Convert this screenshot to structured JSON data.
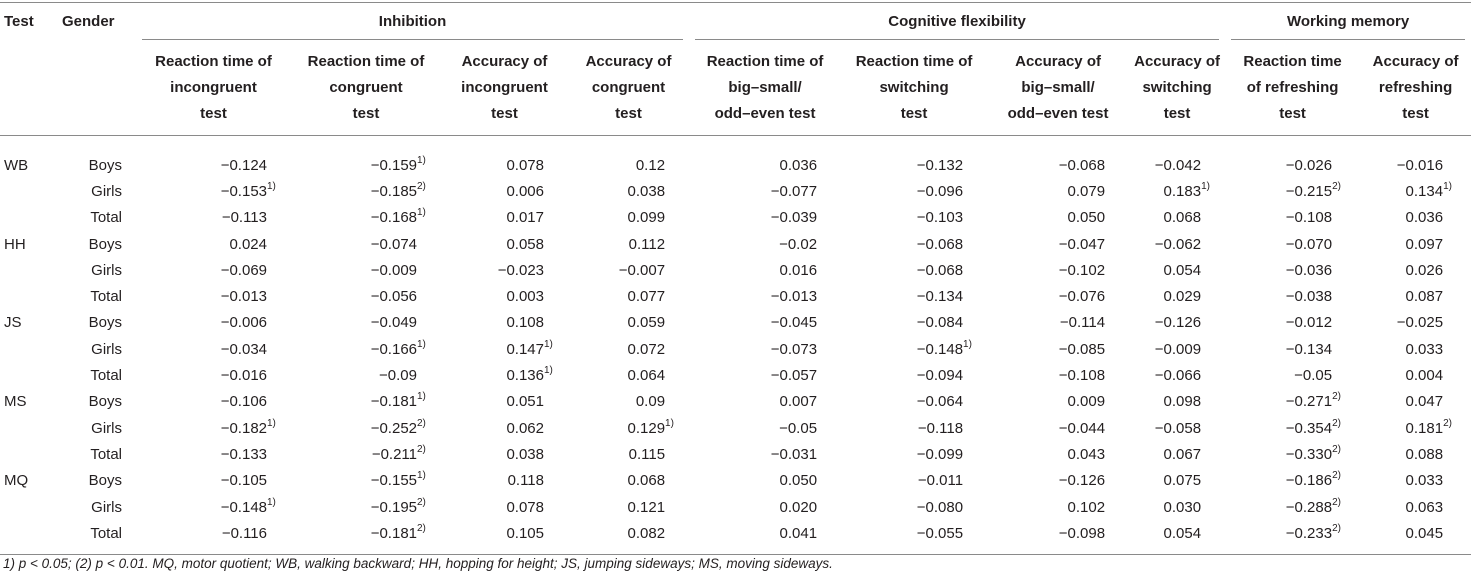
{
  "header": {
    "test": "Test",
    "gender": "Gender",
    "groups": {
      "inhibition": "Inhibition",
      "cognitive_flexibility": "Cognitive flexibility",
      "working_memory": "Working memory"
    },
    "columns": [
      [
        "Reaction time of",
        "incongruent",
        "test"
      ],
      [
        "Reaction time of",
        "congruent",
        "test"
      ],
      [
        "Accuracy of",
        "incongruent",
        "test"
      ],
      [
        "Accuracy of",
        "congruent",
        "test"
      ],
      [
        "Reaction time of",
        "big–small/",
        "odd–even test"
      ],
      [
        "Reaction time of",
        "switching",
        "test"
      ],
      [
        "Accuracy of",
        "big–small/",
        "odd–even test"
      ],
      [
        "Accuracy of",
        "switching",
        "test"
      ],
      [
        "Reaction time",
        "of refreshing",
        "test"
      ],
      [
        "Accuracy of",
        "refreshing",
        "test"
      ]
    ]
  },
  "rows": [
    {
      "test": "WB",
      "gender": "Boys",
      "values": [
        [
          "−0.124",
          ""
        ],
        [
          "−0.159",
          "1)"
        ],
        [
          "0.078",
          ""
        ],
        [
          "0.12",
          ""
        ],
        [
          "0.036",
          ""
        ],
        [
          "−0.132",
          ""
        ],
        [
          "−0.068",
          ""
        ],
        [
          "−0.042",
          ""
        ],
        [
          "−0.026",
          ""
        ],
        [
          "−0.016",
          ""
        ]
      ]
    },
    {
      "test": "",
      "gender": "Girls",
      "values": [
        [
          "−0.153",
          "1)"
        ],
        [
          "−0.185",
          "2)"
        ],
        [
          "0.006",
          ""
        ],
        [
          "0.038",
          ""
        ],
        [
          "−0.077",
          ""
        ],
        [
          "−0.096",
          ""
        ],
        [
          "0.079",
          ""
        ],
        [
          "0.183",
          "1)"
        ],
        [
          "−0.215",
          "2)"
        ],
        [
          "0.134",
          "1)"
        ]
      ]
    },
    {
      "test": "",
      "gender": "Total",
      "values": [
        [
          "−0.113",
          ""
        ],
        [
          "−0.168",
          "1)"
        ],
        [
          "0.017",
          ""
        ],
        [
          "0.099",
          ""
        ],
        [
          "−0.039",
          ""
        ],
        [
          "−0.103",
          ""
        ],
        [
          "0.050",
          ""
        ],
        [
          "0.068",
          ""
        ],
        [
          "−0.108",
          ""
        ],
        [
          "0.036",
          ""
        ]
      ]
    },
    {
      "test": "HH",
      "gender": "Boys",
      "values": [
        [
          "0.024",
          ""
        ],
        [
          "−0.074",
          ""
        ],
        [
          "0.058",
          ""
        ],
        [
          "0.112",
          ""
        ],
        [
          "−0.02",
          ""
        ],
        [
          "−0.068",
          ""
        ],
        [
          "−0.047",
          ""
        ],
        [
          "−0.062",
          ""
        ],
        [
          "−0.070",
          ""
        ],
        [
          "0.097",
          ""
        ]
      ]
    },
    {
      "test": "",
      "gender": "Girls",
      "values": [
        [
          "−0.069",
          ""
        ],
        [
          "−0.009",
          ""
        ],
        [
          "−0.023",
          ""
        ],
        [
          "−0.007",
          ""
        ],
        [
          "0.016",
          ""
        ],
        [
          "−0.068",
          ""
        ],
        [
          "−0.102",
          ""
        ],
        [
          "0.054",
          ""
        ],
        [
          "−0.036",
          ""
        ],
        [
          "0.026",
          ""
        ]
      ]
    },
    {
      "test": "",
      "gender": "Total",
      "values": [
        [
          "−0.013",
          ""
        ],
        [
          "−0.056",
          ""
        ],
        [
          "0.003",
          ""
        ],
        [
          "0.077",
          ""
        ],
        [
          "−0.013",
          ""
        ],
        [
          "−0.134",
          ""
        ],
        [
          "−0.076",
          ""
        ],
        [
          "0.029",
          ""
        ],
        [
          "−0.038",
          ""
        ],
        [
          "0.087",
          ""
        ]
      ]
    },
    {
      "test": "JS",
      "gender": "Boys",
      "values": [
        [
          "−0.006",
          ""
        ],
        [
          "−0.049",
          ""
        ],
        [
          "0.108",
          ""
        ],
        [
          "0.059",
          ""
        ],
        [
          "−0.045",
          ""
        ],
        [
          "−0.084",
          ""
        ],
        [
          "−0.114",
          ""
        ],
        [
          "−0.126",
          ""
        ],
        [
          "−0.012",
          ""
        ],
        [
          "−0.025",
          ""
        ]
      ]
    },
    {
      "test": "",
      "gender": "Girls",
      "values": [
        [
          "−0.034",
          ""
        ],
        [
          "−0.166",
          "1)"
        ],
        [
          "0.147",
          "1)"
        ],
        [
          "0.072",
          ""
        ],
        [
          "−0.073",
          ""
        ],
        [
          "−0.148",
          "1)"
        ],
        [
          "−0.085",
          ""
        ],
        [
          "−0.009",
          ""
        ],
        [
          "−0.134",
          ""
        ],
        [
          "0.033",
          ""
        ]
      ]
    },
    {
      "test": "",
      "gender": "Total",
      "values": [
        [
          "−0.016",
          ""
        ],
        [
          "−0.09",
          ""
        ],
        [
          "0.136",
          "1)"
        ],
        [
          "0.064",
          ""
        ],
        [
          "−0.057",
          ""
        ],
        [
          "−0.094",
          ""
        ],
        [
          "−0.108",
          ""
        ],
        [
          "−0.066",
          ""
        ],
        [
          "−0.05",
          ""
        ],
        [
          "0.004",
          ""
        ]
      ]
    },
    {
      "test": "MS",
      "gender": "Boys",
      "values": [
        [
          "−0.106",
          ""
        ],
        [
          "−0.181",
          "1)"
        ],
        [
          "0.051",
          ""
        ],
        [
          "0.09",
          ""
        ],
        [
          "0.007",
          ""
        ],
        [
          "−0.064",
          ""
        ],
        [
          "0.009",
          ""
        ],
        [
          "0.098",
          ""
        ],
        [
          "−0.271",
          "2)"
        ],
        [
          "0.047",
          ""
        ]
      ]
    },
    {
      "test": "",
      "gender": "Girls",
      "values": [
        [
          "−0.182",
          "1)"
        ],
        [
          "−0.252",
          "2)"
        ],
        [
          "0.062",
          ""
        ],
        [
          "0.129",
          "1)"
        ],
        [
          "−0.05",
          ""
        ],
        [
          "−0.118",
          ""
        ],
        [
          "−0.044",
          ""
        ],
        [
          "−0.058",
          ""
        ],
        [
          "−0.354",
          "2)"
        ],
        [
          "0.181",
          "2)"
        ]
      ]
    },
    {
      "test": "",
      "gender": "Total",
      "values": [
        [
          "−0.133",
          ""
        ],
        [
          "−0.211",
          "2)"
        ],
        [
          "0.038",
          ""
        ],
        [
          "0.115",
          ""
        ],
        [
          "−0.031",
          ""
        ],
        [
          "−0.099",
          ""
        ],
        [
          "0.043",
          ""
        ],
        [
          "0.067",
          ""
        ],
        [
          "−0.330",
          "2)"
        ],
        [
          "0.088",
          ""
        ]
      ]
    },
    {
      "test": "MQ",
      "gender": "Boys",
      "values": [
        [
          "−0.105",
          ""
        ],
        [
          "−0.155",
          "1)"
        ],
        [
          "0.118",
          ""
        ],
        [
          "0.068",
          ""
        ],
        [
          "0.050",
          ""
        ],
        [
          "−0.011",
          ""
        ],
        [
          "−0.126",
          ""
        ],
        [
          "0.075",
          ""
        ],
        [
          "−0.186",
          "2)"
        ],
        [
          "0.033",
          ""
        ]
      ]
    },
    {
      "test": "",
      "gender": "Girls",
      "values": [
        [
          "−0.148",
          "1)"
        ],
        [
          "−0.195",
          "2)"
        ],
        [
          "0.078",
          ""
        ],
        [
          "0.121",
          ""
        ],
        [
          "0.020",
          ""
        ],
        [
          "−0.080",
          ""
        ],
        [
          "0.102",
          ""
        ],
        [
          "0.030",
          ""
        ],
        [
          "−0.288",
          "2)"
        ],
        [
          "0.063",
          ""
        ]
      ]
    },
    {
      "test": "",
      "gender": "Total",
      "values": [
        [
          "−0.116",
          ""
        ],
        [
          "−0.181",
          "2)"
        ],
        [
          "0.105",
          ""
        ],
        [
          "0.082",
          ""
        ],
        [
          "0.041",
          ""
        ],
        [
          "−0.055",
          ""
        ],
        [
          "−0.098",
          ""
        ],
        [
          "0.054",
          ""
        ],
        [
          "−0.233",
          "2)"
        ],
        [
          "0.045",
          ""
        ]
      ]
    }
  ],
  "footnote": "1) p < 0.05; (2) p < 0.01. MQ, motor quotient; WB, walking backward; HH, hopping for height; JS, jumping sideways; MS, moving sideways."
}
